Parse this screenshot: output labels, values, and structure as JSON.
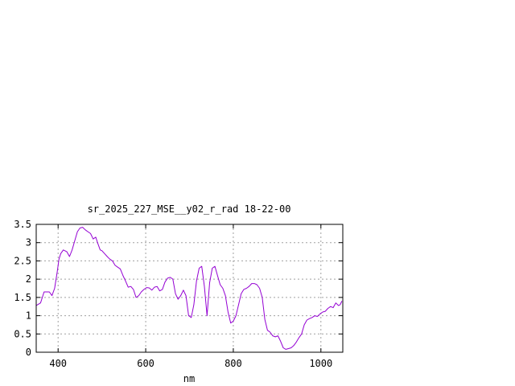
{
  "chart_data": {
    "type": "line",
    "title": "sr_2025_227_MSE__y02_r_rad 18-22-00",
    "xlabel": "nm",
    "ylabel": "",
    "xlim": [
      350,
      1050
    ],
    "ylim": [
      0,
      3.5
    ],
    "grid": true,
    "x_ticks": [
      400,
      600,
      800,
      1000
    ],
    "x_tick_labels": [
      "400",
      "600",
      "800",
      "1000"
    ],
    "y_ticks": [
      0,
      0.5,
      1,
      1.5,
      2,
      2.5,
      3,
      3.5
    ],
    "y_tick_labels": [
      "0",
      "0.5",
      "1",
      "1.5",
      "2",
      "2.5",
      "3",
      "3.5"
    ],
    "series": [
      {
        "color": "#9400d3",
        "x": [
          350,
          360,
          368,
          374,
          380,
          386,
          392,
          398,
          402,
          406,
          412,
          420,
          426,
          432,
          438,
          444,
          450,
          456,
          462,
          468,
          474,
          480,
          486,
          490,
          496,
          500,
          506,
          512,
          518,
          524,
          530,
          536,
          542,
          548,
          554,
          560,
          566,
          572,
          578,
          584,
          590,
          596,
          602,
          608,
          614,
          620,
          626,
          632,
          638,
          644,
          650,
          656,
          662,
          668,
          674,
          680,
          686,
          692,
          698,
          704,
          710,
          716,
          722,
          728,
          734,
          740,
          746,
          752,
          758,
          764,
          770,
          776,
          782,
          788,
          794,
          800,
          806,
          812,
          818,
          824,
          830,
          836,
          842,
          848,
          854,
          860,
          866,
          872,
          878,
          884,
          890,
          896,
          902,
          908,
          914,
          920,
          926,
          932,
          938,
          944,
          950,
          956,
          962,
          968,
          974,
          980,
          986,
          992,
          998,
          1004,
          1010,
          1016,
          1022,
          1028,
          1034,
          1040,
          1044,
          1048
        ],
        "y": [
          1.28,
          1.35,
          1.65,
          1.65,
          1.65,
          1.55,
          1.75,
          2.2,
          2.55,
          2.7,
          2.8,
          2.75,
          2.62,
          2.8,
          3.05,
          3.3,
          3.4,
          3.42,
          3.35,
          3.3,
          3.25,
          3.1,
          3.15,
          3.0,
          2.8,
          2.78,
          2.7,
          2.62,
          2.55,
          2.5,
          2.38,
          2.33,
          2.28,
          2.1,
          1.95,
          1.78,
          1.8,
          1.72,
          1.5,
          1.55,
          1.65,
          1.72,
          1.77,
          1.76,
          1.7,
          1.78,
          1.8,
          1.68,
          1.72,
          1.92,
          2.03,
          2.05,
          2.0,
          1.6,
          1.45,
          1.55,
          1.7,
          1.55,
          1.0,
          0.95,
          1.3,
          1.95,
          2.3,
          2.35,
          1.8,
          1.0,
          1.9,
          2.3,
          2.35,
          2.1,
          1.85,
          1.75,
          1.55,
          1.1,
          0.8,
          0.85,
          1.0,
          1.3,
          1.6,
          1.72,
          1.75,
          1.8,
          1.88,
          1.88,
          1.85,
          1.75,
          1.5,
          0.9,
          0.6,
          0.55,
          0.45,
          0.42,
          0.45,
          0.3,
          0.12,
          0.08,
          0.1,
          0.12,
          0.18,
          0.28,
          0.4,
          0.5,
          0.75,
          0.88,
          0.92,
          0.95,
          1.0,
          0.98,
          1.05,
          1.1,
          1.12,
          1.2,
          1.25,
          1.22,
          1.35,
          1.28,
          1.3,
          1.4
        ]
      }
    ]
  }
}
